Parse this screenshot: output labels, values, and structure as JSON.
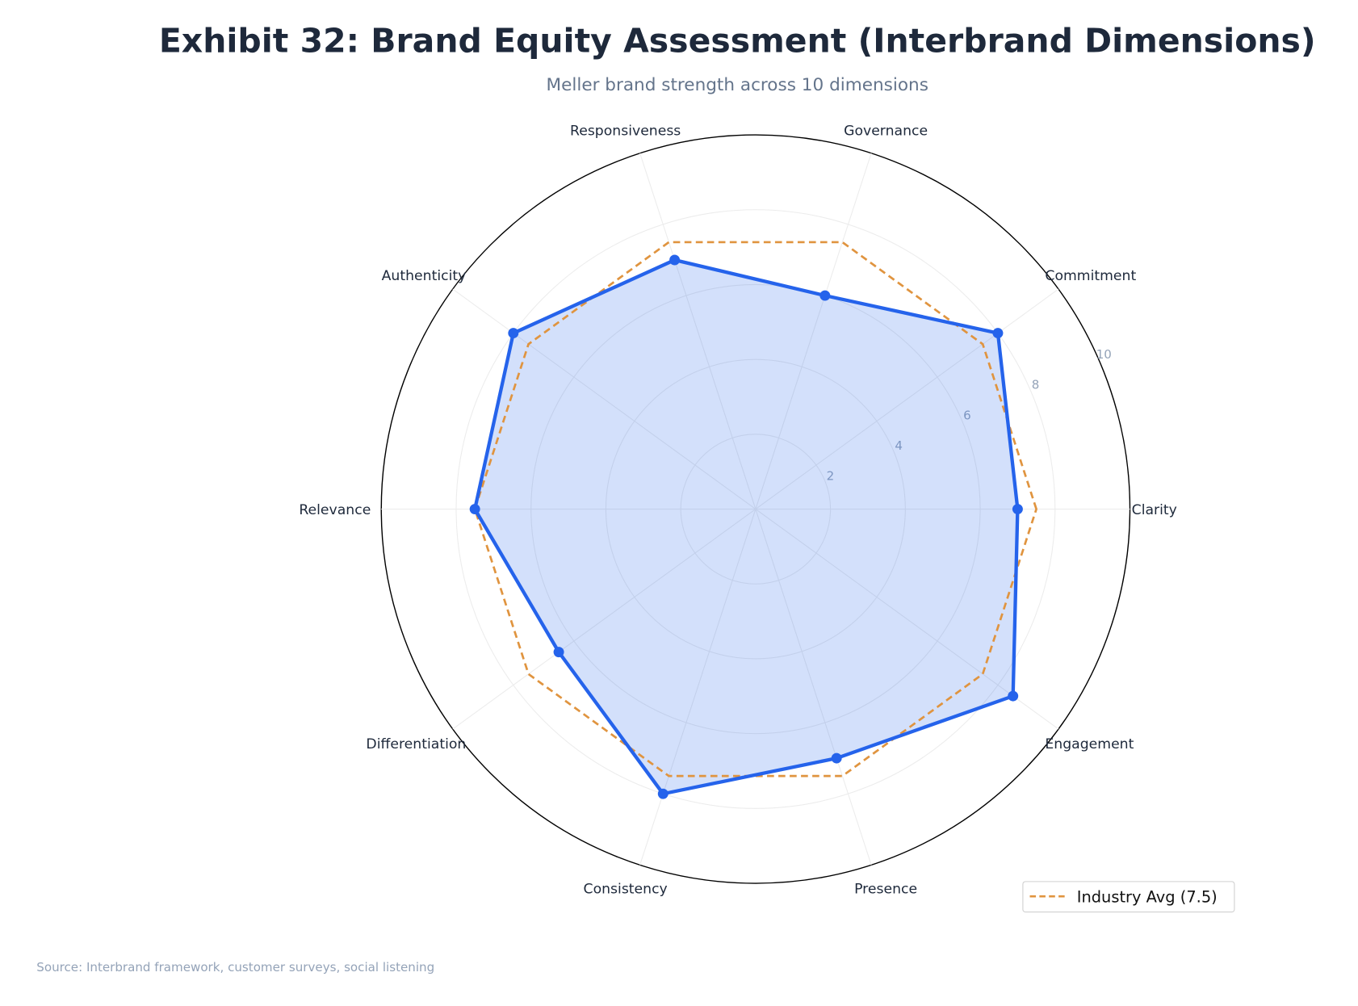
{
  "title": "Exhibit 32: Brand Equity Assessment (Interbrand Dimensions)",
  "subtitle": "Meller brand strength across 10 dimensions",
  "source": "Source: Interbrand framework, customer surveys, social listening",
  "chart_data": {
    "type": "radar",
    "categories": [
      "Clarity",
      "Commitment",
      "Governance",
      "Responsiveness",
      "Authenticity",
      "Relevance",
      "Differentiation",
      "Consistency",
      "Presence",
      "Engagement"
    ],
    "rlim": [
      0,
      10
    ],
    "rticks": [
      2,
      4,
      6,
      8,
      10
    ],
    "grid": true,
    "legend_position": "bottom-right",
    "series": [
      {
        "values": [
          7.0,
          8.0,
          6.0,
          7.0,
          8.0,
          7.5,
          6.5,
          8.0,
          7.0,
          8.5
        ],
        "color": "#2563eb",
        "style": "solid-filled-markers"
      },
      {
        "name": "Industry Avg (7.5)",
        "values": [
          7.5,
          7.5,
          7.5,
          7.5,
          7.5,
          7.5,
          7.5,
          7.5,
          7.5,
          7.5
        ],
        "color": "#e0943f",
        "style": "dashed"
      }
    ]
  }
}
